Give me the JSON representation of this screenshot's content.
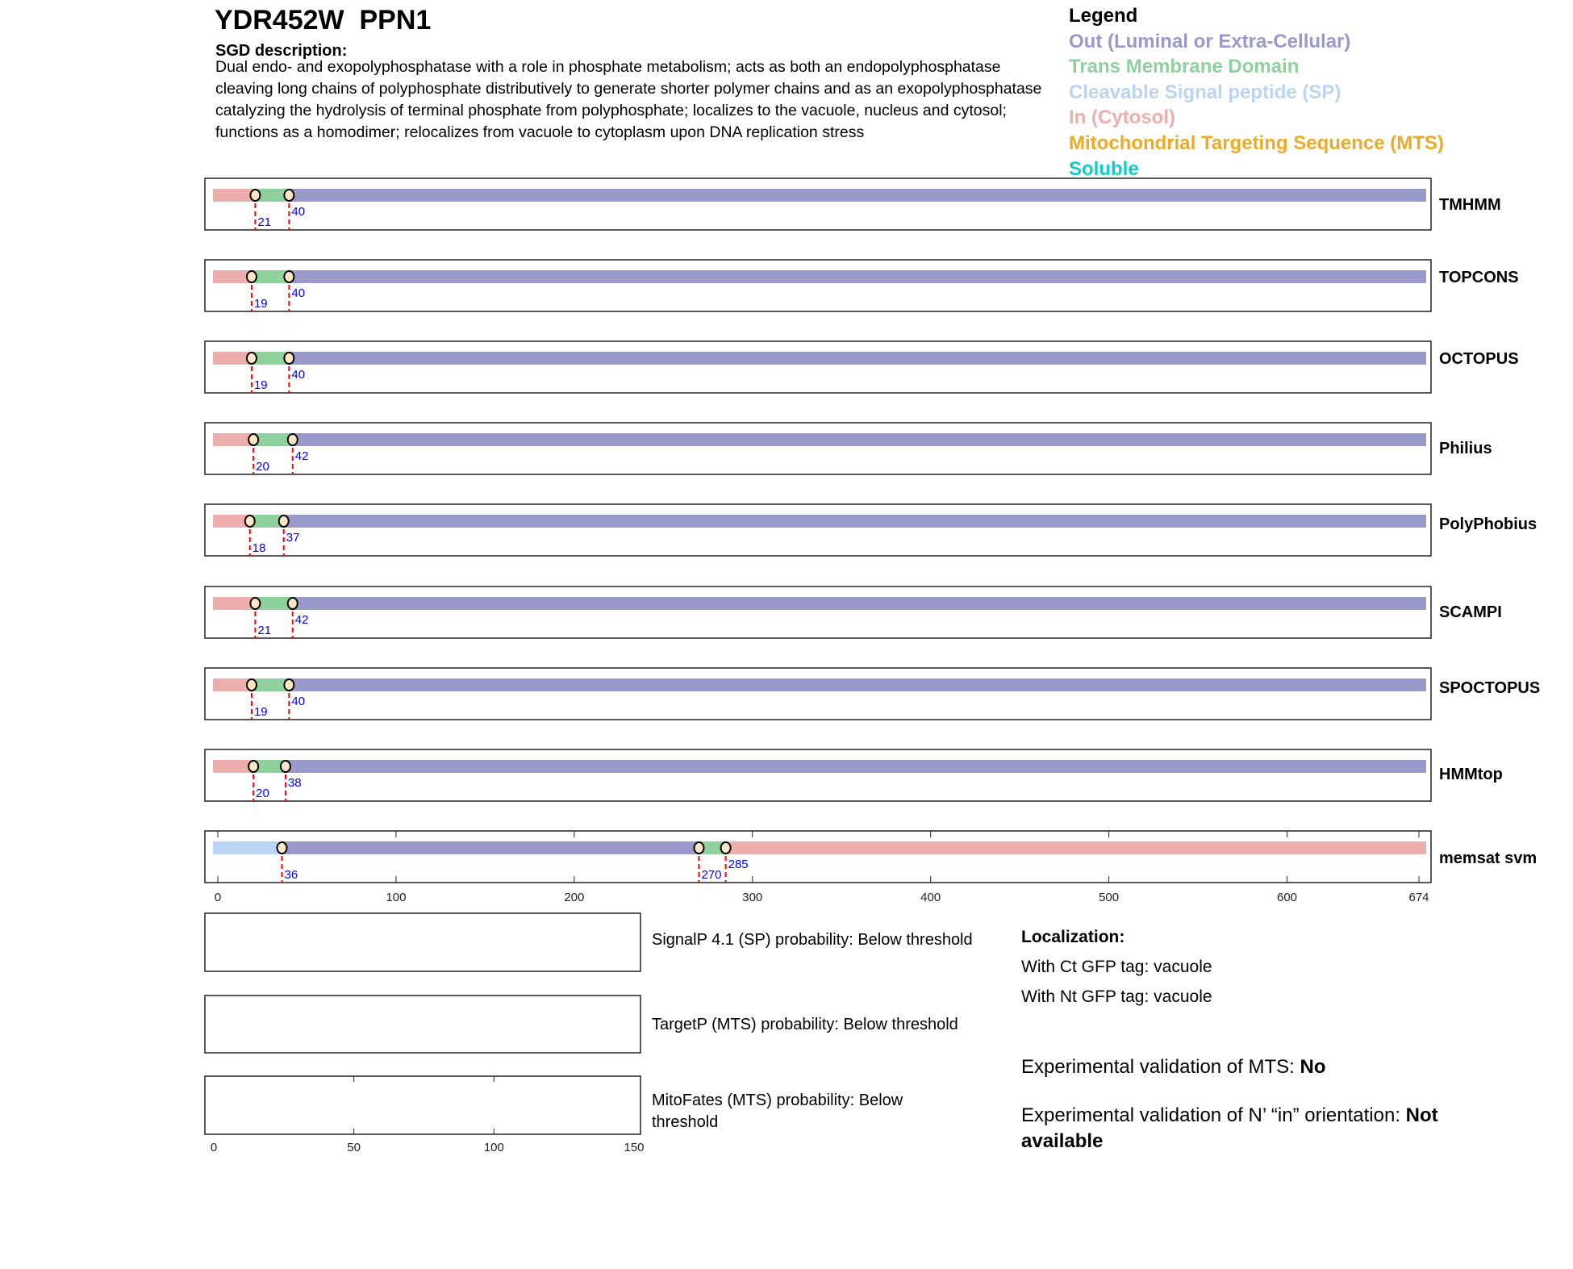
{
  "header": {
    "title": "YDR452W  PPN1",
    "description_label": "SGD description:",
    "description": "Dual endo- and exopolyphosphatase with a role in phosphate metabolism; acts as both an endopolyphosphatase cleaving long chains of polyphosphate distributively to generate shorter polymer chains and as an exopolyphosphatase catalyzing the hydrolysis of terminal phosphate from polyphosphate; localizes to the vacuole, nucleus and cytosol; functions as a homodimer; relocalizes from vacuole to cytoplasm upon DNA replication stress"
  },
  "legend": {
    "title": "Legend",
    "items": [
      {
        "label": "Out (Luminal or Extra-Cellular)",
        "color": "#9999cc"
      },
      {
        "label": "Trans Membrane Domain",
        "color": "#8ed19d"
      },
      {
        "label": "Cleavable Signal peptide (SP)",
        "color": "#b9d5f3"
      },
      {
        "label": "In (Cytosol)",
        "color": "#edaeae"
      },
      {
        "label": "Mitochondrial Targeting Sequence (MTS)",
        "color": "#eeaa22"
      },
      {
        "label": "Soluble",
        "color": "#11cccc"
      }
    ]
  },
  "chart_data": {
    "type": "topology-tracks",
    "length": 674,
    "xticks": [
      "0",
      "100",
      "200",
      "300",
      "400",
      "500",
      "600",
      "674"
    ],
    "tracks": [
      {
        "name": "TMHMM",
        "segments": [
          [
            "in",
            0,
            21
          ],
          [
            "tm",
            21,
            40
          ],
          [
            "out",
            40,
            674
          ]
        ],
        "markers": [
          {
            "pos": 21,
            "label": "21"
          },
          {
            "pos": 40,
            "label": "40"
          }
        ]
      },
      {
        "name": "TOPCONS",
        "segments": [
          [
            "in",
            0,
            19
          ],
          [
            "tm",
            19,
            40
          ],
          [
            "out",
            40,
            674
          ]
        ],
        "markers": [
          {
            "pos": 19,
            "label": "19"
          },
          {
            "pos": 40,
            "label": "40"
          }
        ]
      },
      {
        "name": "OCTOPUS",
        "segments": [
          [
            "in",
            0,
            19
          ],
          [
            "tm",
            19,
            40
          ],
          [
            "out",
            40,
            674
          ]
        ],
        "markers": [
          {
            "pos": 19,
            "label": "19"
          },
          {
            "pos": 40,
            "label": "40"
          }
        ]
      },
      {
        "name": "Philius",
        "segments": [
          [
            "in",
            0,
            20
          ],
          [
            "tm",
            20,
            42
          ],
          [
            "out",
            42,
            674
          ]
        ],
        "markers": [
          {
            "pos": 20,
            "label": "20"
          },
          {
            "pos": 42,
            "label": "42"
          }
        ]
      },
      {
        "name": "PolyPhobius",
        "segments": [
          [
            "in",
            0,
            18
          ],
          [
            "tm",
            18,
            37
          ],
          [
            "out",
            37,
            674
          ]
        ],
        "markers": [
          {
            "pos": 18,
            "label": "18"
          },
          {
            "pos": 37,
            "label": "37"
          }
        ]
      },
      {
        "name": "SCAMPI",
        "segments": [
          [
            "in",
            0,
            21
          ],
          [
            "tm",
            21,
            42
          ],
          [
            "out",
            42,
            674
          ]
        ],
        "markers": [
          {
            "pos": 21,
            "label": "21"
          },
          {
            "pos": 42,
            "label": "42"
          }
        ]
      },
      {
        "name": "SPOCTOPUS",
        "segments": [
          [
            "in",
            0,
            19
          ],
          [
            "tm",
            19,
            40
          ],
          [
            "out",
            40,
            674
          ]
        ],
        "markers": [
          {
            "pos": 19,
            "label": "19"
          },
          {
            "pos": 40,
            "label": "40"
          }
        ]
      },
      {
        "name": "HMMtop",
        "segments": [
          [
            "in",
            0,
            20
          ],
          [
            "tm",
            20,
            38
          ],
          [
            "out",
            38,
            674
          ]
        ],
        "markers": [
          {
            "pos": 20,
            "label": "20"
          },
          {
            "pos": 38,
            "label": "38"
          }
        ]
      },
      {
        "name": "memsat svm",
        "segments": [
          [
            "sp",
            0,
            36
          ],
          [
            "out",
            36,
            270
          ],
          [
            "tm",
            270,
            285
          ],
          [
            "in",
            285,
            674
          ]
        ],
        "markers": [
          {
            "pos": 36,
            "label": "36"
          },
          {
            "pos": 270,
            "label": "270"
          },
          {
            "pos": 285,
            "label": "285"
          }
        ]
      }
    ],
    "prob_axis": {
      "range": [
        0,
        150
      ],
      "ticks": [
        "0",
        "50",
        "100",
        "150"
      ]
    }
  },
  "probabilities": [
    {
      "text": "SignalP 4.1 (SP) probability: Below threshold"
    },
    {
      "text": "TargetP (MTS) probability: Below threshold"
    },
    {
      "text": "MitoFates (MTS) probability: Below threshold"
    }
  ],
  "localization": {
    "title": "Localization:",
    "ct": "With Ct GFP tag: vacuole",
    "nt": "With Nt GFP tag: vacuole"
  },
  "validation": {
    "mts_label": "Experimental validation of MTS: ",
    "mts_value": "No",
    "orient_label": "Experimental validation of N’ “in” orientation: ",
    "orient_value": "Not available"
  },
  "colors": {
    "in": "#edaeae",
    "out": "#9999cc",
    "tm": "#8ed19d",
    "sp": "#b9d5f3",
    "marker": "#ffe6c4",
    "dash": "#ff0000",
    "label": "#0000ff"
  }
}
